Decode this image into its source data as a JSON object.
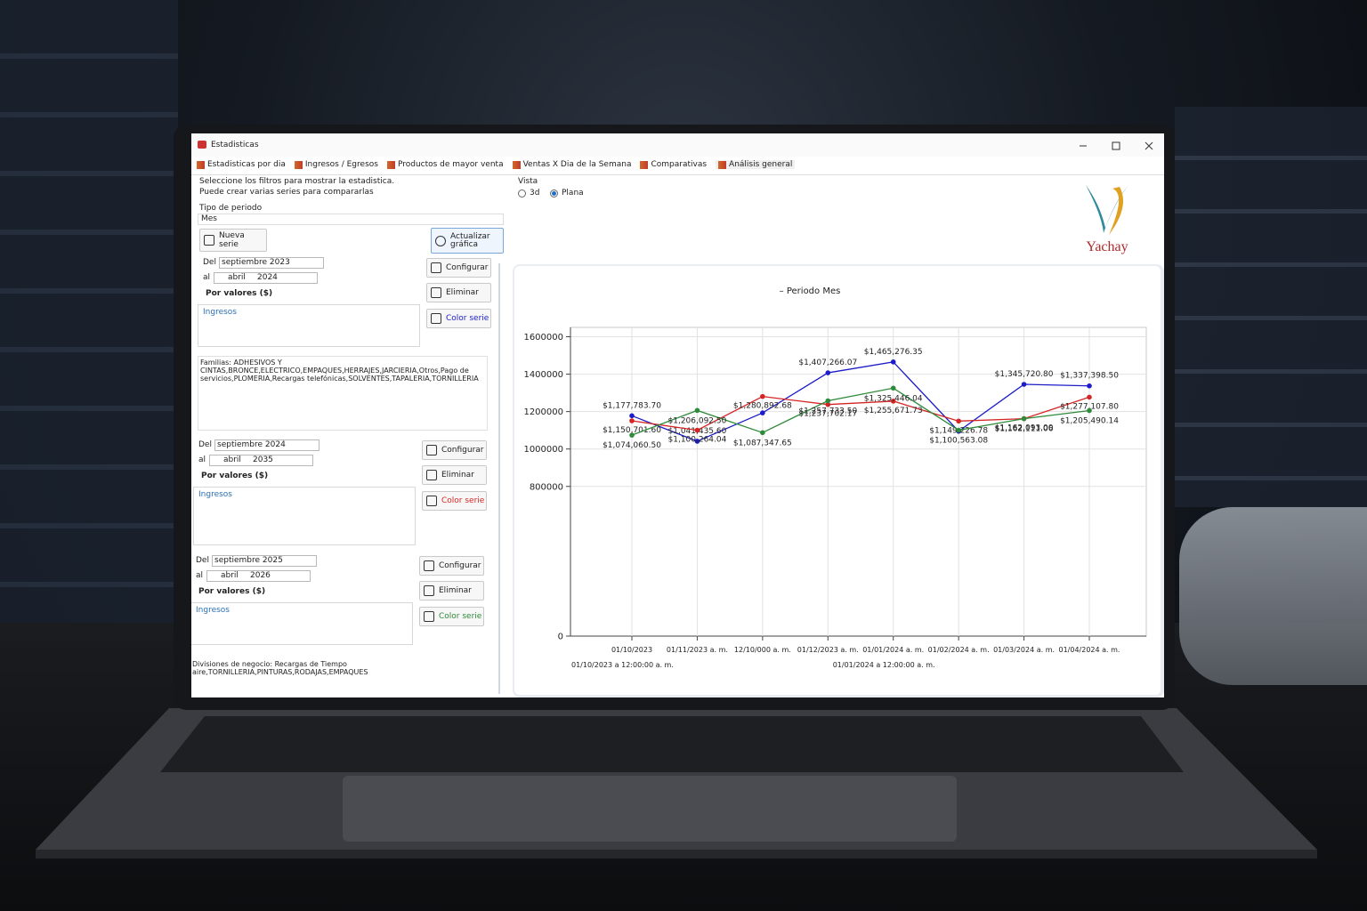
{
  "window": {
    "title": "Estadisticas"
  },
  "tabs": [
    "Estadisticas por dia",
    "Ingresos / Egresos",
    "Productos de mayor venta",
    "Ventas X Dia de la Semana",
    "Comparativas",
    "Análisis general"
  ],
  "left_panel": {
    "instructions": [
      "Seleccione los filtros para mostrar la estadistica.",
      "Puede crear varias series para compararlas"
    ],
    "period_type_label": "Tipo de periodo",
    "period_type": "Mes",
    "new_series_button": "Nueva serie",
    "refresh_button": "Actualizar gráfica",
    "series_filters": [
      {
        "from_label": "Del",
        "from": "septiembre 2023",
        "to_label": "al",
        "to_month": "abril",
        "to_year": "2024",
        "measure": "Por valores ($)",
        "item": "Ingresos",
        "configure": "Configurar",
        "delete": "Eliminar",
        "color": "Color serie",
        "note": "Familias: ADHESIVOS Y CINTAS,BRONCE,ELECTRICO,EMPAQUES,HERRAJES,JARCIERIA,Otros,Pago de servicios,PLOMERIA,Recargas telefónicas,SOLVENTES,TAPALERIA,TORNILLERIA"
      },
      {
        "from_label": "Del",
        "from": "septiembre 2024",
        "to_label": "al",
        "to_month": "abril",
        "to_year": "2035",
        "measure": "Por valores ($)",
        "item": "Ingresos",
        "configure": "Configurar",
        "delete": "Eliminar",
        "color": "Color serie"
      },
      {
        "from_label": "Del",
        "from": "septiembre 2025",
        "to_label": "al",
        "to_month": "abril",
        "to_year": "2026",
        "measure": "Por valores ($)",
        "item": "Ingresos",
        "configure": "Configurar",
        "delete": "Eliminar",
        "color": "Color serie",
        "note": "Divisiones de negocio: Recargas de Tiempo aire,TORNILLERIA,PINTURAS,RODAJAS,EMPAQUES"
      }
    ]
  },
  "view": {
    "label": "Vista",
    "options": [
      "3d",
      "Plana"
    ],
    "selected_index": 1
  },
  "logo": "Yachay",
  "chart_data": {
    "type": "line",
    "title": "– Periodo Mes",
    "categories": [
      "01/10/2023",
      "01/11/2023 a. m.",
      "12/10/000 a. m.",
      "01/12/2023 a. m.",
      "01/01/2024 a. m.",
      "01/02/2024 a. m.",
      "01/03/2024 a. m.",
      "01/04/2024 a. m."
    ],
    "x_sublabels": [
      "01/10/2023  a  12:00:00 a. m.",
      "01/01/2024  a  12:00:00 a. m."
    ],
    "ylim": [
      0,
      1650000
    ],
    "yticks": [
      0,
      800000,
      1000000,
      1200000,
      1400000,
      1600000
    ],
    "grid": true,
    "series": [
      {
        "color": "#1c1cc8",
        "values": [
          1177783.7,
          1041435.6,
          1193000,
          1407266.07,
          1465276.35,
          1095000,
          1345720.8,
          1337398.5
        ],
        "value_labels": [
          "$1,177,783.70",
          "$1,041,435.60",
          null,
          "$1,407,266.07",
          "$1,465,276.35",
          null,
          "$1,345,720.80",
          "$1,337,398.50"
        ]
      },
      {
        "color": "#d42424",
        "values": [
          1150701.6,
          1100264.04,
          1280892.68,
          1237702.17,
          1255671.73,
          1149226.78,
          1162093.0,
          1277107.8
        ],
        "value_labels": [
          "$1,150,701.60",
          "$1,100,264.04",
          "$1,280,892.68",
          "$1,237,702.17",
          "$1,255,671.73",
          "$1,149,226.78",
          "$1,162,093.00",
          "$1,277,107.80"
        ]
      },
      {
        "color": "#2e8b3a",
        "values": [
          1074060.5,
          1206092.5,
          1087347.65,
          1257733.5,
          1325446.04,
          1100563.08,
          1162111.06,
          1205490.14
        ],
        "value_labels": [
          "$1,074,060.50",
          "$1,206,092.50",
          "$1,087,347.65",
          "$1,257,733.50",
          "$1,325,446.04",
          "$1,100,563.08",
          "$1,162,111.06",
          "$1,205,490.14"
        ]
      }
    ]
  }
}
